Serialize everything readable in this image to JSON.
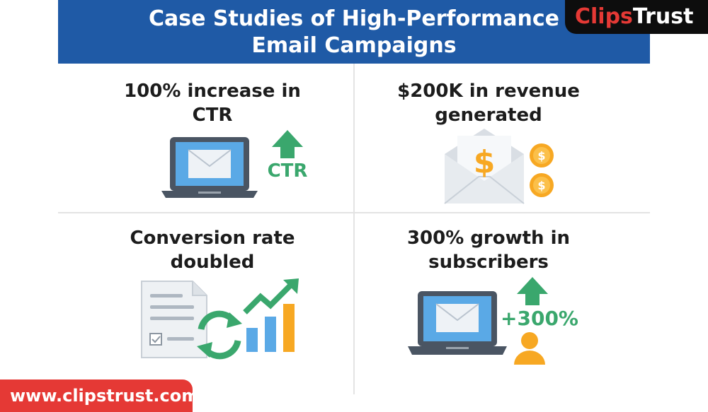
{
  "header": {
    "title_line1": "Case Studies of High-Performance",
    "title_line2": "Email Campaigns"
  },
  "brand": {
    "logo_part1": "Clips",
    "logo_part2": "Trust",
    "url": "www.clipstrust.com"
  },
  "cases": [
    {
      "title_line1": "100% increase in",
      "title_line2": "CTR",
      "badge": "CTR"
    },
    {
      "title_line1": "$200K in revenue",
      "title_line2": "generated",
      "symbol": "$"
    },
    {
      "title_line1": "Conversion rate",
      "title_line2": "doubled"
    },
    {
      "title_line1": "300% growth in",
      "title_line2": "subscribers",
      "badge": "+300%"
    }
  ],
  "colors": {
    "banner": "#1f5aa6",
    "green": "#3aa76d",
    "orange": "#f7a823",
    "blue": "#5aa9e6",
    "red": "#e53935"
  }
}
